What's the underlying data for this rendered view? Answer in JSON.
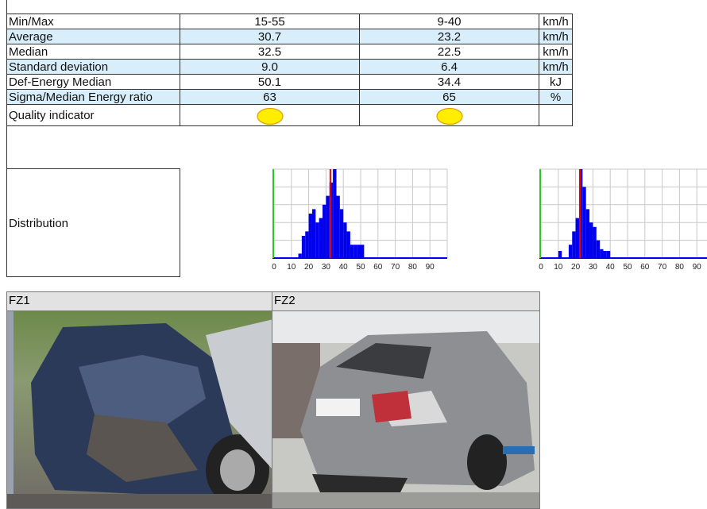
{
  "table": {
    "rows": [
      [
        "Min/Max",
        "15-55",
        "9-40",
        "km/h"
      ],
      [
        "Average",
        "30.7",
        "23.2",
        "km/h"
      ],
      [
        "Median",
        "32.5",
        "22.5",
        "km/h"
      ],
      [
        "Standard deviation",
        "9.0",
        "6.4",
        "km/h"
      ],
      [
        "Def-Energy Median",
        "50.1",
        "34.4",
        "kJ"
      ],
      [
        "Sigma/Median Energy ratio",
        "63",
        "65",
        "%"
      ],
      [
        "Quality indicator"
      ]
    ]
  },
  "distribution": {
    "label": "Distribution",
    "charts": [
      {
        "type": "histogram",
        "bins": [
          14,
          16,
          18,
          20,
          22,
          24,
          26,
          28,
          30,
          32,
          34,
          36,
          38,
          40,
          42,
          44,
          46,
          48,
          50,
          52,
          54
        ],
        "values": [
          5,
          25,
          30,
          50,
          55,
          40,
          45,
          60,
          70,
          85,
          100,
          70,
          55,
          40,
          30,
          15,
          15,
          15,
          15,
          0
        ],
        "color": "#0000ee",
        "marker": 32.5,
        "marker_color": "#ee0000",
        "xlim": [
          0,
          100
        ],
        "xticks": [
          0,
          10,
          20,
          30,
          40,
          50,
          60,
          70,
          80,
          90
        ],
        "ylim": [
          0,
          100
        ]
      },
      {
        "type": "histogram",
        "bins": [
          10,
          12,
          14,
          16,
          18,
          20,
          22,
          24,
          26,
          28,
          30,
          32,
          34,
          36,
          38,
          40
        ],
        "values": [
          8,
          0,
          0,
          15,
          30,
          45,
          100,
          80,
          55,
          40,
          35,
          20,
          10,
          8,
          8
        ],
        "color": "#0000ee",
        "marker": 22.5,
        "marker_color": "#ee0000",
        "xlim": [
          0,
          100
        ],
        "xticks": [
          0,
          10,
          20,
          30,
          40,
          50,
          60,
          70,
          80,
          90
        ],
        "ylim": [
          0,
          100
        ]
      }
    ]
  },
  "photos": [
    {
      "label": "FZ1"
    },
    {
      "label": "FZ2"
    }
  ]
}
